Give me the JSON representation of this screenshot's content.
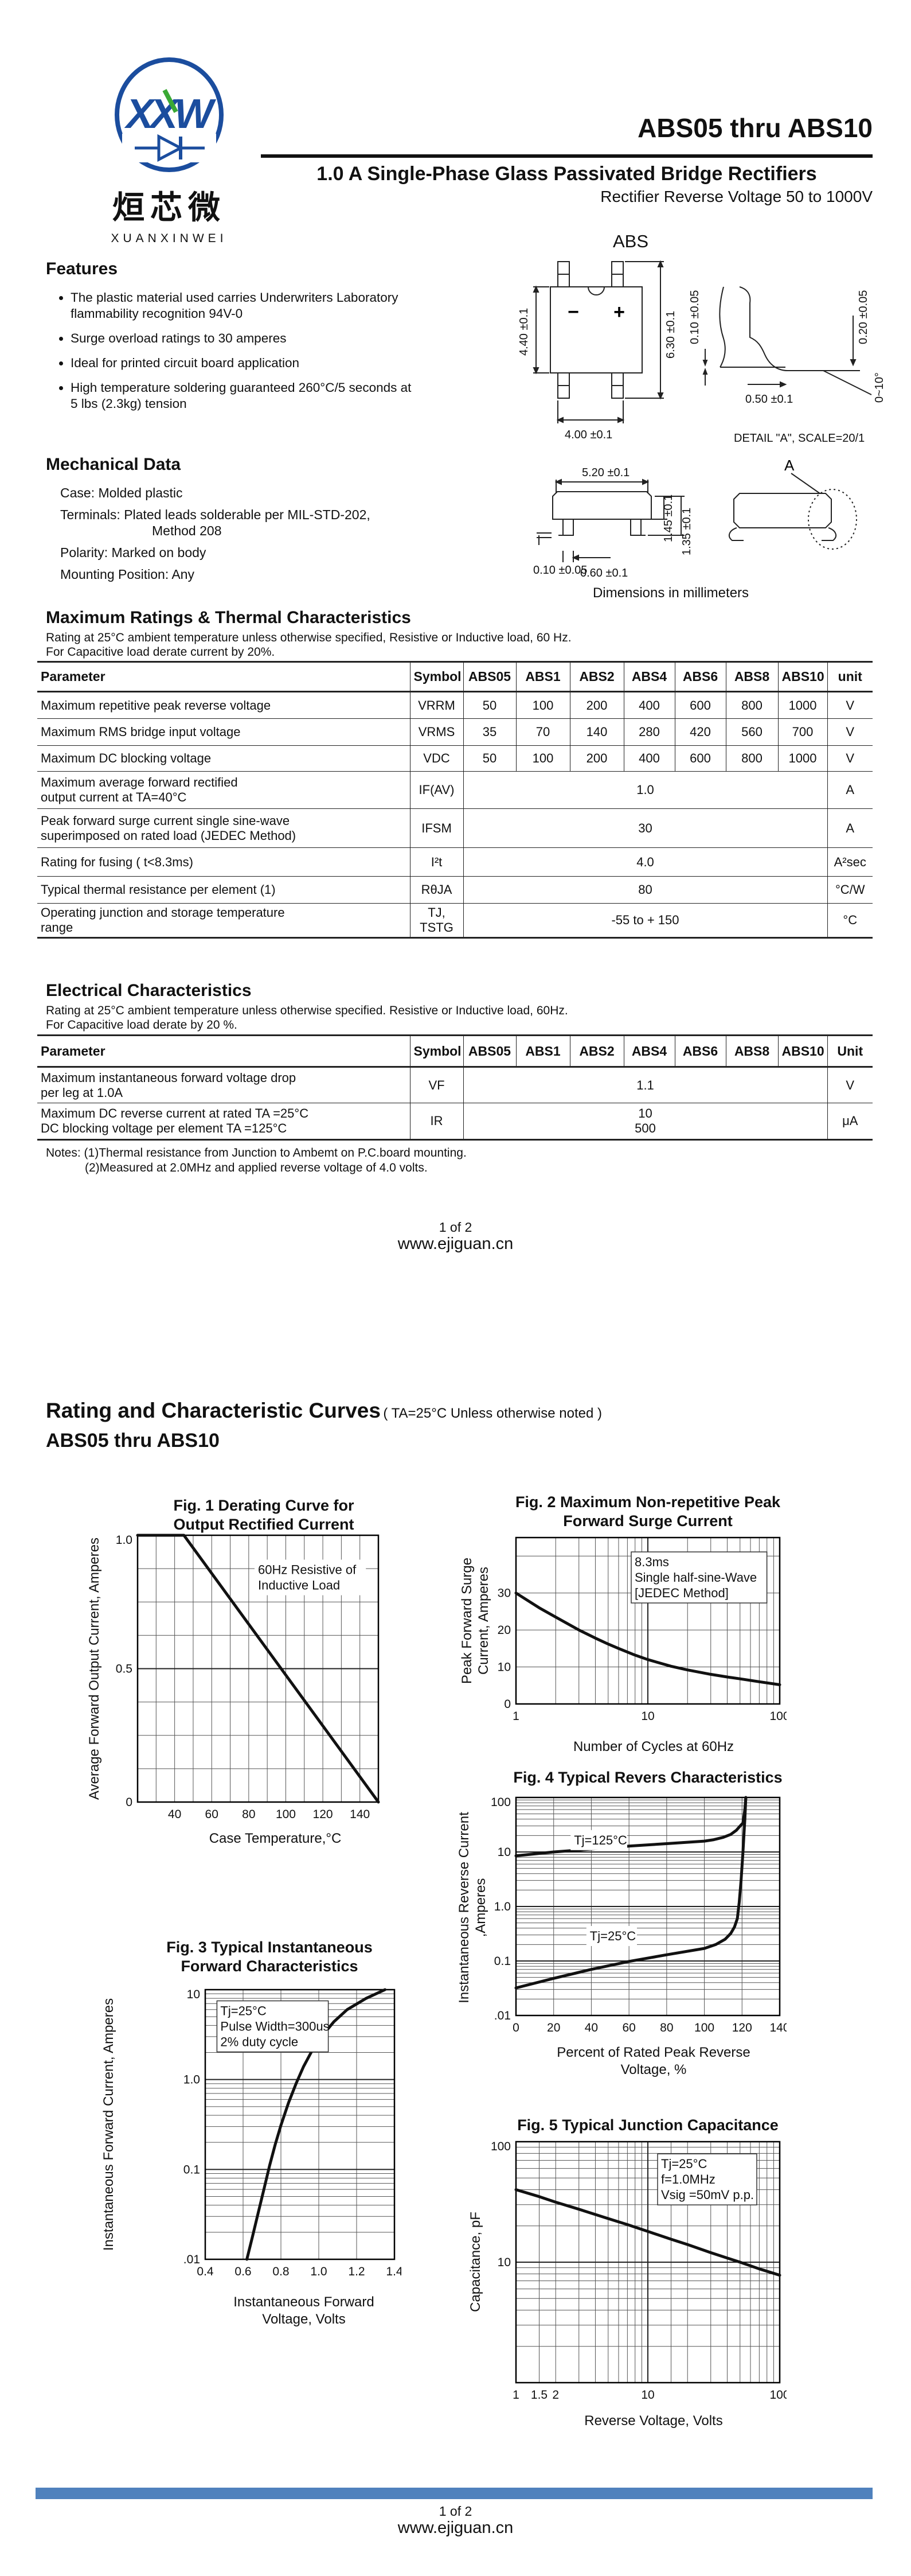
{
  "brand": {
    "logo_letters": "XXW",
    "logo_cn": "烜芯微",
    "logo_en": "XUANXINWEI",
    "logo_blue": "#1b4d9e",
    "logo_green": "#3aa935"
  },
  "accent_bar_color": "#4f81bd",
  "page1": {
    "title": "ABS05 thru ABS10",
    "subtitle": "1.0 A Single-Phase Glass Passivated Bridge Rectifiers",
    "subtitle2": "Rectifier Reverse Voltage 50 to 1000V",
    "package_label": "ABS",
    "features": {
      "heading": "Features",
      "items": [
        "The plastic material used carries Underwriters Laboratory flammability recognition 94V-0",
        "Surge overload ratings to 30 amperes",
        "Ideal for printed circuit board application",
        "High temperature soldering guaranteed 260°C/5 seconds at 5 lbs (2.3kg) tension"
      ]
    },
    "mechanical": {
      "heading": "Mechanical Data",
      "lines": [
        "Case: Molded plastic",
        "Terminals: Plated leads solderable per MIL-STD-202,",
        "Method 208",
        "Polarity: Marked on body",
        "Mounting Position: Any"
      ]
    },
    "package": {
      "minus": "−",
      "plus": "+",
      "dim_body_h": "4.40 ±0.1",
      "dim_total_h": "6.30 ±0.1",
      "dim_body_w": "4.00 ±0.1",
      "dim_lead_t": "0.10 ±0.05",
      "dim_lead_t2": "0.20 ±0.05",
      "dim_lead_w": "0.50 ±0.1",
      "dim_lead_angle": "0~10°",
      "dim_side_t": "0.10 ±0.05",
      "dim_side_w": "5.20 ±0.1",
      "dim_side_h1": "1.45 ±0.1",
      "dim_side_h2": "1.35 ±0.1",
      "dim_side_pin": "0.60 ±0.1",
      "detail": "DETAIL \"A\", SCALE=20/1",
      "detail_label": "A",
      "caption": "Dimensions in millimeters"
    },
    "max_ratings": {
      "heading": "Maximum Ratings & Thermal Characteristics",
      "note1": "Rating at 25°C ambient temperature unless otherwise specified, Resistive or Inductive load, 60 Hz.",
      "note2": "For Capacitive load derate current by 20%.",
      "columns": [
        "Parameter",
        "Symbol",
        "ABS05",
        "ABS1",
        "ABS2",
        "ABS4",
        "ABS6",
        "ABS8",
        "ABS10",
        "unit"
      ],
      "rows": [
        {
          "param": "Maximum repetitive peak reverse voltage",
          "symbol": "VRRM",
          "values": [
            "50",
            "100",
            "200",
            "400",
            "600",
            "800",
            "1000"
          ],
          "unit": "V"
        },
        {
          "param": "Maximum RMS bridge input voltage",
          "symbol": "VRMS",
          "values": [
            "35",
            "70",
            "140",
            "280",
            "420",
            "560",
            "700"
          ],
          "unit": "V"
        },
        {
          "param": "Maximum DC blocking voltage",
          "symbol": "VDC",
          "values": [
            "50",
            "100",
            "200",
            "400",
            "600",
            "800",
            "1000"
          ],
          "unit": "V"
        },
        {
          "param": "Maximum average forward rectified\noutput current at TA=40°C",
          "symbol": "IF(AV)",
          "span": "1.0",
          "unit": "A"
        },
        {
          "param": "Peak forward surge current single sine-wave\nsuperimposed on rated load (JEDEC Method)",
          "symbol": "IFSM",
          "span": "30",
          "unit": "A"
        },
        {
          "param": "Rating for fusing ( t<8.3ms)",
          "symbol": "I²t",
          "span": "4.0",
          "unit": "A²sec"
        },
        {
          "param": "Typical  thermal resistance per element (1)",
          "symbol": "RθJA",
          "span": "80",
          "unit": "°C/W"
        },
        {
          "param": "Operating junction and storage temperature\nrange",
          "symbol": "TJ,\nTSTG",
          "span": "-55 to + 150",
          "unit": "°C"
        }
      ]
    },
    "electrical": {
      "heading": "Electrical Characteristics",
      "note1": "Rating at 25°C ambient temperature unless otherwise specified. Resistive or Inductive load, 60Hz.",
      "note2": "For Capacitive load derate by 20 %.",
      "columns": [
        "Parameter",
        "Symbol",
        "ABS05",
        "ABS1",
        "ABS2",
        "ABS4",
        "ABS6",
        "ABS8",
        "ABS10",
        "Unit"
      ],
      "rows": [
        {
          "param": "Maximum instantaneous forward voltage drop\nper leg at 1.0A",
          "symbol": "VF",
          "span": "1.1",
          "unit": "V"
        },
        {
          "param": "Maximum DC reverse current at rated  TA =25°C\nDC blocking voltage per element      TA =125°C",
          "symbol": "IR",
          "span": "10\n500",
          "unit": "μA"
        }
      ],
      "notes": [
        "Notes:  (1)Thermal resistance from Junction to Ambemt on P.C.board mounting.",
        "(2)Measured at 2.0MHz and applied reverse voltage of 4.0 volts."
      ]
    },
    "footer": {
      "page": "1 of 2",
      "site": "www.ejiguan.cn"
    }
  },
  "page2": {
    "heading": "Rating and Characteristic Curves",
    "heading_note": "( TA=25°C Unless otherwise noted )",
    "subheading": "ABS05 thru ABS10",
    "footer": {
      "page": "1 of 2",
      "site": "www.ejiguan.cn"
    }
  },
  "chart_data": [
    {
      "id": "fig1",
      "type": "line",
      "title": "Fig. 1 Derating Curve for\nOutput Rectified Current",
      "xlabel": "Case Temperature,°C",
      "ylabel": "Average Forward Output\nCurrent, Amperes",
      "x": {
        "scale": "linear",
        "min": 20,
        "max": 150
      },
      "y": {
        "scale": "linear",
        "min": 0,
        "max": 1.0
      },
      "xticks": [
        {
          "v": 40,
          "l": "40"
        },
        {
          "v": 60,
          "l": "60"
        },
        {
          "v": 80,
          "l": "80"
        },
        {
          "v": 100,
          "l": "100"
        },
        {
          "v": 120,
          "l": "120"
        },
        {
          "v": 140,
          "l": "140"
        }
      ],
      "yticks": [
        {
          "v": 1.0,
          "l": "1.0"
        },
        {
          "v": 0.5,
          "l": "0.5"
        },
        {
          "v": 0,
          "l": "0"
        }
      ],
      "xgrid": [
        30,
        40,
        50,
        60,
        70,
        80,
        90,
        100,
        110,
        120,
        130,
        140
      ],
      "ygrid": [
        0.125,
        0.25,
        0.375,
        0.625,
        0.75,
        0.875
      ],
      "ygrid2": [
        0.5
      ],
      "series": [
        {
          "name": "derating",
          "points": [
            [
              20,
              1.0
            ],
            [
              45,
              1.0
            ],
            [
              150,
              0
            ]
          ]
        }
      ],
      "annotations": [
        {
          "fx": 0.5,
          "fy": 0.1,
          "box": "fill",
          "lines": [
            "60Hz Resistive of",
            "Inductive Load"
          ]
        }
      ]
    },
    {
      "id": "fig2",
      "type": "line",
      "title": "Fig. 2 Maximum Non-repetitive Peak\nForward Surge Current",
      "xlabel": "Number of Cycles at 60Hz",
      "ylabel": "Peak Forward Surge Current,\nAmperes",
      "x": {
        "scale": "log",
        "min": 1,
        "max": 100
      },
      "y": {
        "scale": "linear",
        "min": 0,
        "max": 45
      },
      "xticks": [
        {
          "v": 1,
          "l": "1"
        },
        {
          "v": 10,
          "l": "10"
        },
        {
          "v": 100,
          "l": "100"
        }
      ],
      "yticks": [
        {
          "v": 30,
          "l": "30"
        },
        {
          "v": 20,
          "l": "20"
        },
        {
          "v": 10,
          "l": "10"
        },
        {
          "v": 0,
          "l": "0"
        }
      ],
      "xgrid": [
        2,
        3,
        4,
        5,
        6,
        7,
        8,
        9,
        20,
        30,
        40,
        50,
        60,
        70,
        80,
        90
      ],
      "xgrid2": [
        10
      ],
      "ygrid": [
        10,
        20,
        30,
        40
      ],
      "series": [
        {
          "name": "surge",
          "points": [
            [
              1,
              30
            ],
            [
              1.5,
              26
            ],
            [
              2,
              23.5
            ],
            [
              3,
              20
            ],
            [
              4,
              17.8
            ],
            [
              5,
              16.2
            ],
            [
              6,
              15
            ],
            [
              8,
              13.2
            ],
            [
              10,
              12
            ],
            [
              15,
              10.2
            ],
            [
              20,
              9.2
            ],
            [
              30,
              8
            ],
            [
              40,
              7.3
            ],
            [
              50,
              6.8
            ],
            [
              70,
              6
            ],
            [
              100,
              5.2
            ]
          ]
        }
      ],
      "annotations": [
        {
          "fx": 0.45,
          "fy": 0.1,
          "box": "outline",
          "lines": [
            "8.3ms",
            "Single half-sine-Wave",
            "[JEDEC Method]"
          ]
        }
      ]
    },
    {
      "id": "fig3",
      "type": "line",
      "title": "Fig. 3 Typical Instantaneous\nForward Characteristics",
      "xlabel": "Instantaneous Forward\nVoltage, Volts",
      "ylabel": "Instantaneous Forward Current,\nAmperes",
      "x": {
        "scale": "linear",
        "min": 0.4,
        "max": 1.4
      },
      "y": {
        "scale": "log",
        "min": 0.01,
        "max": 10
      },
      "xticks": [
        {
          "v": 0.4,
          "l": "0.4"
        },
        {
          "v": 0.6,
          "l": "0.6"
        },
        {
          "v": 0.8,
          "l": "0.8"
        },
        {
          "v": 1.0,
          "l": "1.0"
        },
        {
          "v": 1.2,
          "l": "1.2"
        },
        {
          "v": 1.4,
          "l": "1.4"
        }
      ],
      "yticks": [
        {
          "v": 10,
          "l": "10"
        },
        {
          "v": 1.0,
          "l": "1.0"
        },
        {
          "v": 0.1,
          "l": "0.1"
        },
        {
          "v": 0.01,
          "l": ".01"
        }
      ],
      "xgrid": [
        0.6,
        0.8,
        1.0,
        1.2
      ],
      "ygrid": [
        0.02,
        0.03,
        0.04,
        0.05,
        0.06,
        0.07,
        0.08,
        0.09,
        0.2,
        0.3,
        0.4,
        0.5,
        0.6,
        0.7,
        0.8,
        0.9,
        2,
        3,
        4,
        5,
        6,
        7,
        8,
        9
      ],
      "ygrid2": [
        0.1,
        1
      ],
      "series": [
        {
          "name": "forward",
          "points": [
            [
              0.62,
              0.01
            ],
            [
              0.65,
              0.018
            ],
            [
              0.68,
              0.033
            ],
            [
              0.71,
              0.06
            ],
            [
              0.74,
              0.11
            ],
            [
              0.77,
              0.19
            ],
            [
              0.8,
              0.31
            ],
            [
              0.84,
              0.55
            ],
            [
              0.88,
              0.9
            ],
            [
              0.92,
              1.4
            ],
            [
              0.97,
              2.2
            ],
            [
              1.02,
              3.1
            ],
            [
              1.08,
              4.4
            ],
            [
              1.15,
              6.0
            ],
            [
              1.25,
              8.0
            ],
            [
              1.35,
              10
            ]
          ]
        }
      ],
      "annotations": [
        {
          "fx": 0.08,
          "fy": 0.05,
          "box": "outline",
          "lines": [
            "Tj=25°C",
            "Pulse Width=300us",
            "2% duty cycle"
          ]
        }
      ]
    },
    {
      "id": "fig4",
      "type": "line",
      "title": "Fig. 4 Typical Revers Characteristics",
      "xlabel": "Percent of Rated Peak Reverse\nVoltage, %",
      "ylabel": "Instantaneous Reverse\nCurrent ,Amperes",
      "x": {
        "scale": "linear",
        "min": 0,
        "max": 140
      },
      "y": {
        "scale": "log",
        "min": 0.01,
        "max": 100
      },
      "xticks": [
        {
          "v": 0,
          "l": "0"
        },
        {
          "v": 20,
          "l": "20"
        },
        {
          "v": 40,
          "l": "40"
        },
        {
          "v": 60,
          "l": "60"
        },
        {
          "v": 80,
          "l": "80"
        },
        {
          "v": 100,
          "l": "100"
        },
        {
          "v": 120,
          "l": "120"
        },
        {
          "v": 140,
          "l": "140"
        }
      ],
      "yticks": [
        {
          "v": 100,
          "l": "100"
        },
        {
          "v": 10,
          "l": "10"
        },
        {
          "v": 1,
          "l": "1.0"
        },
        {
          "v": 0.1,
          "l": "0.1"
        },
        {
          "v": 0.01,
          "l": ".01"
        }
      ],
      "xgrid": [
        20,
        40,
        60,
        80,
        100,
        120
      ],
      "ygrid": [
        0.02,
        0.03,
        0.04,
        0.05,
        0.06,
        0.07,
        0.08,
        0.09,
        0.2,
        0.3,
        0.4,
        0.5,
        0.6,
        0.7,
        0.8,
        0.9,
        2,
        3,
        4,
        5,
        6,
        7,
        8,
        9,
        20,
        30,
        40,
        50,
        60,
        70,
        80,
        90
      ],
      "ygrid2": [
        0.1,
        1,
        10
      ],
      "series": [
        {
          "name": "Tj=125C",
          "points": [
            [
              0,
              8.5
            ],
            [
              20,
              10
            ],
            [
              40,
              11.3
            ],
            [
              60,
              12.8
            ],
            [
              80,
              14.2
            ],
            [
              100,
              15.8
            ],
            [
              105,
              16.8
            ],
            [
              110,
              18.5
            ],
            [
              114,
              21
            ],
            [
              117,
              25
            ],
            [
              119,
              30
            ],
            [
              120.5,
              34
            ],
            [
              121.5,
              60
            ],
            [
              122,
              100
            ]
          ]
        },
        {
          "name": "Tj=25C",
          "points": [
            [
              0,
              0.032
            ],
            [
              20,
              0.048
            ],
            [
              40,
              0.07
            ],
            [
              60,
              0.098
            ],
            [
              80,
              0.13
            ],
            [
              100,
              0.17
            ],
            [
              106,
              0.2
            ],
            [
              111,
              0.25
            ],
            [
              114,
              0.32
            ],
            [
              116,
              0.42
            ],
            [
              117.5,
              0.6
            ],
            [
              118.5,
              1.2
            ],
            [
              119.5,
              3
            ],
            [
              120.5,
              10
            ],
            [
              121.5,
              40
            ],
            [
              122,
              100
            ]
          ]
        }
      ],
      "annotations": [
        {
          "fx": 0.22,
          "fy": 0.16,
          "box": "fill",
          "lines": [
            "Tj=125°C"
          ]
        },
        {
          "fx": 0.28,
          "fy": 0.6,
          "box": "fill",
          "lines": [
            "Tj=25°C"
          ]
        }
      ]
    },
    {
      "id": "fig5",
      "type": "line",
      "title": "Fig. 5 Typical Junction Capacitance",
      "xlabel": "Reverse Voltage, Volts",
      "ylabel": "Capacitance, pF",
      "x": {
        "scale": "log",
        "min": 1,
        "max": 100
      },
      "y": {
        "scale": "log",
        "min": 1,
        "max": 100
      },
      "xticks": [
        {
          "v": 1,
          "l": "1"
        },
        {
          "v": 1.5,
          "l": "1.5"
        },
        {
          "v": 2,
          "l": "2"
        },
        {
          "v": 10,
          "l": "10"
        },
        {
          "v": 100,
          "l": "100"
        }
      ],
      "yticks": [
        {
          "v": 100,
          "l": "100"
        },
        {
          "v": 10,
          "l": "10"
        }
      ],
      "xgrid": [
        1.5,
        2,
        3,
        4,
        5,
        6,
        7,
        8,
        9,
        15,
        20,
        30,
        40,
        50,
        60,
        70,
        80,
        90
      ],
      "xgrid2": [
        10
      ],
      "ygrid": [
        2,
        3,
        4,
        5,
        6,
        7,
        8,
        9,
        20,
        30,
        40,
        50,
        60,
        70,
        80,
        90
      ],
      "ygrid2": [
        10
      ],
      "series": [
        {
          "name": "capacitance",
          "points": [
            [
              1,
              40
            ],
            [
              1.5,
              35
            ],
            [
              2,
              31.5
            ],
            [
              3,
              27.5
            ],
            [
              5,
              23
            ],
            [
              7,
              20.5
            ],
            [
              10,
              18
            ],
            [
              15,
              15.5
            ],
            [
              20,
              14
            ],
            [
              30,
              12
            ],
            [
              50,
              10
            ],
            [
              70,
              8.8
            ],
            [
              100,
              7.8
            ]
          ]
        }
      ],
      "annotations": [
        {
          "fx": 0.55,
          "fy": 0.06,
          "box": "outline",
          "lines": [
            "Tj=25°C",
            "f=1.0MHz",
            "Vsig =50mV p.p."
          ]
        }
      ]
    }
  ]
}
